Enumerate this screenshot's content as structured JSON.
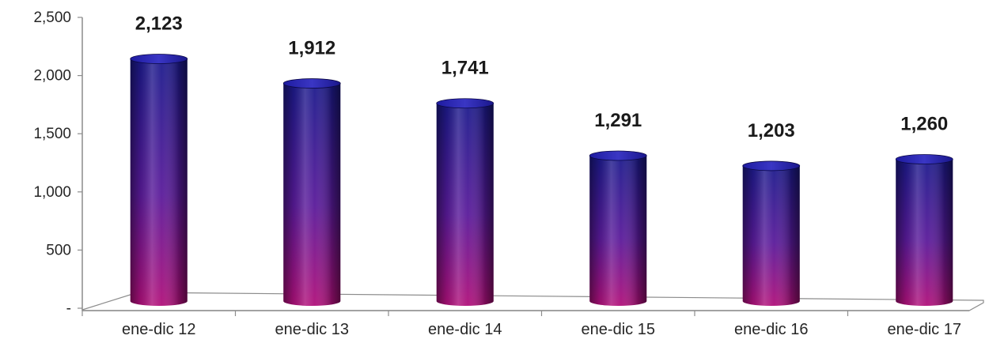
{
  "chart_data": {
    "type": "bar",
    "title": "",
    "xlabel": "",
    "ylabel": "",
    "categories": [
      "ene-dic 12",
      "ene-dic 13",
      "ene-dic 14",
      "ene-dic 15",
      "ene-dic 16",
      "ene-dic 17"
    ],
    "values": [
      2123,
      1912,
      1741,
      1291,
      1203,
      1260
    ],
    "data_labels": [
      "2,123",
      "1,912",
      "1,741",
      "1,291",
      "1,203",
      "1,260"
    ],
    "ylim": [
      0,
      2500
    ],
    "y_ticks": [
      0,
      500,
      1000,
      1500,
      2000,
      2500
    ],
    "y_tick_labels": [
      "-",
      "500",
      "1,000",
      "1,500",
      "2,000",
      "2,500"
    ],
    "grid": false,
    "legend": "none",
    "bar_style": "3d-cylinder",
    "colors": {
      "bar_top": "#1c1a8c",
      "bar_bottom": "#b0107a",
      "bar_dark_edge": "#0b0844",
      "axis": "#8c8c8c"
    }
  }
}
